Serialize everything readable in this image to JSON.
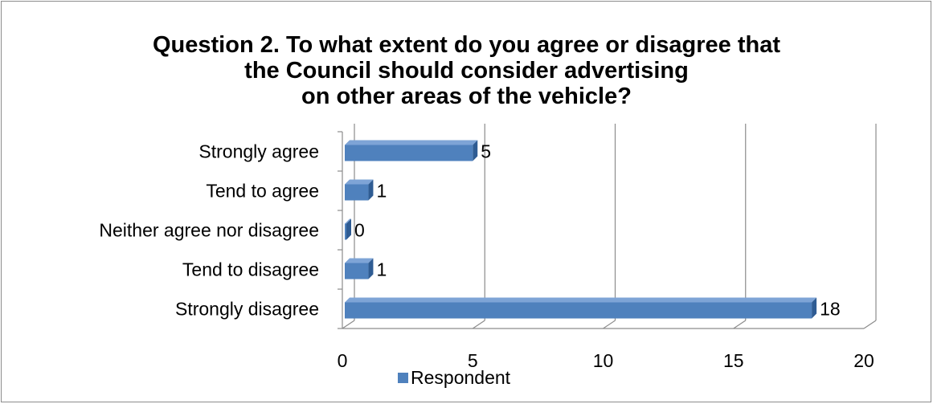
{
  "chart_data": {
    "type": "bar",
    "orientation": "horizontal",
    "title_lines": [
      "Question 2. To what extent do you agree or disagree that",
      "the Council should consider advertising",
      "on other areas of the vehicle?"
    ],
    "categories": [
      "Strongly agree",
      "Tend to agree",
      "Neither agree nor disagree",
      "Tend to disagree",
      "Strongly disagree"
    ],
    "series": [
      {
        "name": "Respondent",
        "values": [
          5,
          1,
          0,
          1,
          18
        ],
        "color": "#4f81bd"
      }
    ],
    "data_labels": [
      "5",
      "1",
      "0",
      "1",
      "18"
    ],
    "xlim": [
      0,
      20
    ],
    "x_ticks": [
      "0",
      "5",
      "10",
      "15",
      "20"
    ],
    "grid": true,
    "legend_position": "bottom"
  }
}
